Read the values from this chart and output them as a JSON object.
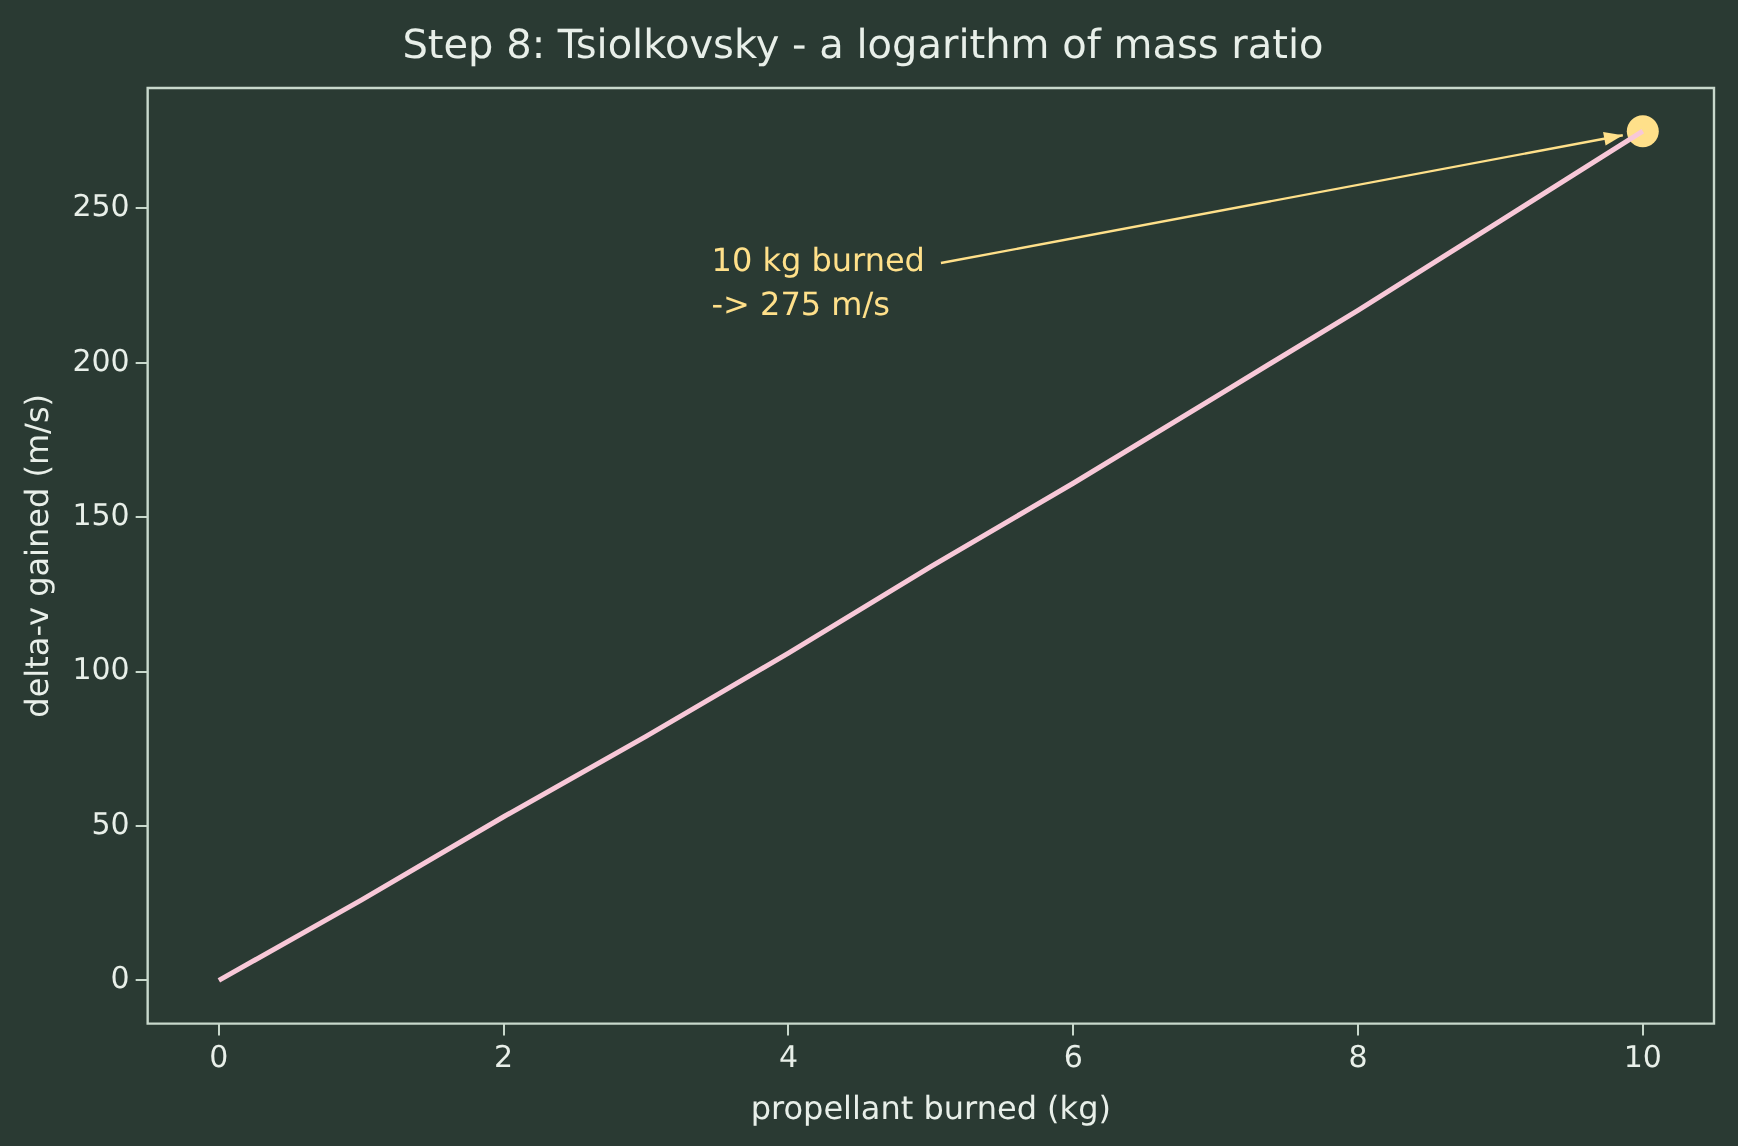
{
  "chart_data": {
    "type": "line",
    "title": "Step 8: Tsiolkovsky - a logarithm of mass ratio",
    "xlabel": "propellant burned (kg)",
    "ylabel": "delta-v gained (m/s)",
    "series": [
      {
        "type": "line",
        "color": "#f8c8d8",
        "marker": "none",
        "x": [
          0,
          1,
          2,
          3,
          4,
          5,
          6,
          7,
          8,
          9,
          10
        ],
        "values": [
          0,
          26,
          53,
          79,
          106,
          134,
          161,
          189,
          217,
          246,
          275
        ]
      },
      {
        "type": "scatter",
        "color": "#ffe08a",
        "marker": "circle",
        "x": [
          10
        ],
        "values": [
          275
        ]
      }
    ],
    "annotations": [
      "10 kg burned\n-> 275 m/s"
    ],
    "xlim": [
      -0.5,
      10.5
    ],
    "xticks": [
      0,
      2,
      4,
      6,
      8,
      10
    ],
    "ylim": [
      -14,
      289
    ],
    "yticks": [
      0,
      50,
      100,
      150,
      200,
      250
    ],
    "grid": false,
    "legend": false
  }
}
